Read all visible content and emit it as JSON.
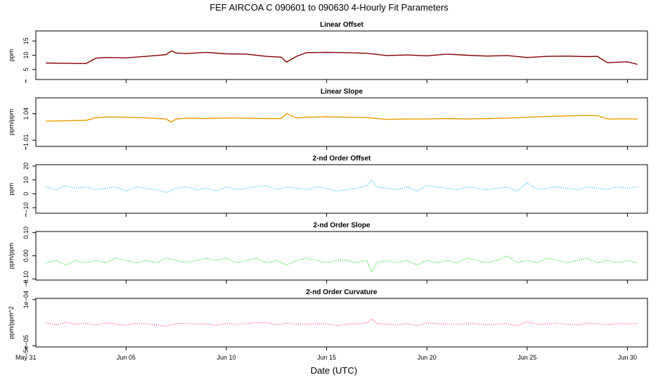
{
  "figure": {
    "title": "FEF   AIRCOA C   090601 to 090630   4-Hourly Fit Parameters",
    "xlabel": "Date (UTC)"
  },
  "x_axis": {
    "type": "date",
    "range": [
      "2009-05-31T12:00",
      "2009-07-01T00:00"
    ],
    "ticks": [
      {
        "date": "2009-05-31",
        "label": "May 31"
      },
      {
        "date": "2009-06-05",
        "label": "Jun 05"
      },
      {
        "date": "2009-06-10",
        "label": "Jun 10"
      },
      {
        "date": "2009-06-15",
        "label": "Jun 15"
      },
      {
        "date": "2009-06-20",
        "label": "Jun 20"
      },
      {
        "date": "2009-06-25",
        "label": "Jun 25"
      },
      {
        "date": "2009-06-30",
        "label": "Jun 30"
      }
    ]
  },
  "chart_data": [
    {
      "type": "line",
      "title": "Linear Offset",
      "ylabel": "ppm",
      "ylim": [
        1.5,
        18.5
      ],
      "yticks": [
        {
          "v": 5,
          "label": "5"
        },
        {
          "v": 10,
          "label": "10"
        },
        {
          "v": 15,
          "label": "15"
        }
      ],
      "color": "#8b0000",
      "style": "solid",
      "x": [
        "2009-06-01",
        "2009-06-02",
        "2009-06-03",
        "2009-06-03T12:00",
        "2009-06-04",
        "2009-06-05",
        "2009-06-06",
        "2009-06-07",
        "2009-06-07T06:00",
        "2009-06-07T12:00",
        "2009-06-08",
        "2009-06-09",
        "2009-06-10",
        "2009-06-11",
        "2009-06-12",
        "2009-06-12T18:00",
        "2009-06-13",
        "2009-06-13T12:00",
        "2009-06-14",
        "2009-06-15",
        "2009-06-16",
        "2009-06-17",
        "2009-06-18",
        "2009-06-19",
        "2009-06-20",
        "2009-06-21",
        "2009-06-22",
        "2009-06-23",
        "2009-06-24",
        "2009-06-25",
        "2009-06-26",
        "2009-06-27",
        "2009-06-28",
        "2009-06-28T12:00",
        "2009-06-29",
        "2009-06-30",
        "2009-06-30T12:00"
      ],
      "y": [
        7.3,
        7.2,
        7.1,
        9.0,
        9.2,
        9.1,
        9.6,
        10.2,
        11.5,
        10.8,
        10.6,
        11.0,
        10.5,
        10.4,
        9.6,
        9.3,
        7.6,
        9.6,
        10.9,
        11.0,
        10.9,
        10.7,
        9.9,
        10.1,
        9.8,
        10.4,
        10.0,
        9.7,
        9.9,
        9.2,
        9.6,
        9.7,
        9.5,
        9.6,
        7.4,
        7.7,
        6.8
      ]
    },
    {
      "type": "line",
      "title": "Linear Slope",
      "ylabel": "ppm/ppm",
      "ylim": [
        1.003,
        1.058
      ],
      "yticks": [
        {
          "v": 1.01,
          "label": "1.01"
        },
        {
          "v": 1.04,
          "label": "1.04"
        }
      ],
      "color": "#ffa500",
      "style": "solid",
      "x": [
        "2009-06-01",
        "2009-06-02",
        "2009-06-03",
        "2009-06-03T12:00",
        "2009-06-04",
        "2009-06-05",
        "2009-06-06",
        "2009-06-07",
        "2009-06-07T06:00",
        "2009-06-07T12:00",
        "2009-06-08",
        "2009-06-09",
        "2009-06-10",
        "2009-06-11",
        "2009-06-12",
        "2009-06-12T18:00",
        "2009-06-13",
        "2009-06-13T12:00",
        "2009-06-14",
        "2009-06-15",
        "2009-06-16",
        "2009-06-17",
        "2009-06-18",
        "2009-06-19",
        "2009-06-20",
        "2009-06-21",
        "2009-06-22",
        "2009-06-23",
        "2009-06-24",
        "2009-06-25",
        "2009-06-26",
        "2009-06-27",
        "2009-06-28",
        "2009-06-28T12:00",
        "2009-06-29",
        "2009-06-30",
        "2009-06-30T12:00"
      ],
      "y": [
        1.0315,
        1.032,
        1.0325,
        1.0355,
        1.0363,
        1.036,
        1.0352,
        1.034,
        1.0305,
        1.034,
        1.035,
        1.0345,
        1.0352,
        1.0348,
        1.0345,
        1.0345,
        1.04,
        1.0352,
        1.036,
        1.0365,
        1.036,
        1.0358,
        1.0335,
        1.034,
        1.034,
        1.0345,
        1.034,
        1.0345,
        1.035,
        1.036,
        1.0368,
        1.0375,
        1.038,
        1.0378,
        1.034,
        1.0342,
        1.034
      ]
    },
    {
      "type": "line",
      "title": "2-nd Order Offset",
      "ylabel": "ppm",
      "ylim": [
        -14,
        21
      ],
      "yticks": [
        {
          "v": -10,
          "label": "−10"
        },
        {
          "v": 0,
          "label": "0"
        },
        {
          "v": 10,
          "label": "10"
        },
        {
          "v": 20,
          "label": "20"
        }
      ],
      "color": "#00b3f0",
      "style": "dotted",
      "x": [
        "2009-06-01",
        "2009-06-01T12:00",
        "2009-06-02",
        "2009-06-02T12:00",
        "2009-06-03",
        "2009-06-03T12:00",
        "2009-06-04",
        "2009-06-04T12:00",
        "2009-06-05",
        "2009-06-05T12:00",
        "2009-06-06",
        "2009-06-06T12:00",
        "2009-06-07",
        "2009-06-07T12:00",
        "2009-06-08",
        "2009-06-08T12:00",
        "2009-06-09",
        "2009-06-09T12:00",
        "2009-06-10",
        "2009-06-10T12:00",
        "2009-06-11",
        "2009-06-11T12:00",
        "2009-06-12",
        "2009-06-12T12:00",
        "2009-06-13",
        "2009-06-13T12:00",
        "2009-06-14",
        "2009-06-14T12:00",
        "2009-06-15",
        "2009-06-15T12:00",
        "2009-06-16",
        "2009-06-16T12:00",
        "2009-06-17",
        "2009-06-17T06:00",
        "2009-06-17T12:00",
        "2009-06-18",
        "2009-06-18T12:00",
        "2009-06-19",
        "2009-06-19T12:00",
        "2009-06-20",
        "2009-06-20T12:00",
        "2009-06-21",
        "2009-06-21T12:00",
        "2009-06-22",
        "2009-06-22T12:00",
        "2009-06-23",
        "2009-06-23T12:00",
        "2009-06-24",
        "2009-06-24T12:00",
        "2009-06-25",
        "2009-06-25T12:00",
        "2009-06-26",
        "2009-06-26T12:00",
        "2009-06-27",
        "2009-06-27T12:00",
        "2009-06-28",
        "2009-06-28T12:00",
        "2009-06-29",
        "2009-06-29T12:00",
        "2009-06-30",
        "2009-06-30T12:00"
      ],
      "y": [
        5,
        3,
        6,
        4,
        5,
        3,
        4,
        5,
        2,
        5,
        4,
        3,
        1,
        4,
        5,
        3,
        4,
        2,
        5,
        3,
        4,
        5,
        6,
        3,
        5,
        4,
        3,
        5,
        4,
        2,
        3,
        4,
        6,
        10,
        5,
        4,
        3,
        5,
        2,
        6,
        5,
        4,
        3,
        5,
        4,
        3,
        4,
        5,
        2,
        8,
        3,
        4,
        5,
        4,
        3,
        5,
        4,
        3,
        5,
        4,
        5
      ]
    },
    {
      "type": "line",
      "title": "2-nd Order Slope",
      "ylabel": "ppm/ppm",
      "ylim": [
        -0.105,
        0.105
      ],
      "yticks": [
        {
          "v": -0.1,
          "label": "−0.10"
        },
        {
          "v": 0,
          "label": "0.00"
        },
        {
          "v": 0.1,
          "label": "0.10"
        }
      ],
      "color": "#00d000",
      "style": "dotted",
      "x": [
        "2009-06-01",
        "2009-06-01T12:00",
        "2009-06-02",
        "2009-06-02T12:00",
        "2009-06-03",
        "2009-06-03T12:00",
        "2009-06-04",
        "2009-06-04T12:00",
        "2009-06-05",
        "2009-06-05T12:00",
        "2009-06-06",
        "2009-06-06T12:00",
        "2009-06-07",
        "2009-06-07T12:00",
        "2009-06-08",
        "2009-06-08T12:00",
        "2009-06-09",
        "2009-06-09T12:00",
        "2009-06-10",
        "2009-06-10T12:00",
        "2009-06-11",
        "2009-06-11T12:00",
        "2009-06-12",
        "2009-06-12T12:00",
        "2009-06-13",
        "2009-06-13T12:00",
        "2009-06-14",
        "2009-06-14T12:00",
        "2009-06-15",
        "2009-06-15T12:00",
        "2009-06-16",
        "2009-06-16T12:00",
        "2009-06-17",
        "2009-06-17T06:00",
        "2009-06-17T12:00",
        "2009-06-18",
        "2009-06-18T12:00",
        "2009-06-19",
        "2009-06-19T12:00",
        "2009-06-20",
        "2009-06-20T12:00",
        "2009-06-21",
        "2009-06-21T12:00",
        "2009-06-22",
        "2009-06-22T12:00",
        "2009-06-23",
        "2009-06-23T12:00",
        "2009-06-24",
        "2009-06-24T12:00",
        "2009-06-25",
        "2009-06-25T12:00",
        "2009-06-26",
        "2009-06-26T12:00",
        "2009-06-27",
        "2009-06-27T12:00",
        "2009-06-28",
        "2009-06-28T12:00",
        "2009-06-29",
        "2009-06-29T12:00",
        "2009-06-30",
        "2009-06-30T12:00"
      ],
      "y": [
        -0.03,
        -0.02,
        -0.04,
        -0.02,
        -0.03,
        -0.02,
        -0.03,
        -0.01,
        -0.02,
        -0.03,
        -0.02,
        -0.03,
        -0.01,
        -0.02,
        -0.03,
        -0.02,
        -0.01,
        -0.02,
        -0.01,
        -0.03,
        -0.02,
        -0.01,
        -0.03,
        -0.02,
        -0.04,
        -0.02,
        -0.01,
        -0.02,
        -0.03,
        -0.02,
        -0.02,
        -0.03,
        -0.02,
        -0.07,
        -0.03,
        -0.02,
        -0.03,
        -0.02,
        -0.04,
        -0.02,
        -0.03,
        -0.02,
        -0.03,
        -0.01,
        -0.02,
        -0.03,
        -0.02,
        0.0,
        -0.03,
        -0.02,
        -0.03,
        -0.01,
        -0.02,
        -0.03,
        -0.02,
        -0.01,
        -0.03,
        -0.02,
        -0.03,
        -0.02,
        -0.03
      ]
    },
    {
      "type": "line",
      "title": "2-nd Order Curvature",
      "ylabel": "ppm/ppm^2",
      "ylim": [
        -5.4e-05,
        0.000104
      ],
      "yticks": [
        {
          "v": -5e-05,
          "label": "−5e−05"
        },
        {
          "v": 0.0001,
          "label": "1e−04"
        }
      ],
      "color": "#ff3070",
      "style": "dotted",
      "x": [
        "2009-06-01",
        "2009-06-01T12:00",
        "2009-06-02",
        "2009-06-02T12:00",
        "2009-06-03",
        "2009-06-03T12:00",
        "2009-06-04",
        "2009-06-04T12:00",
        "2009-06-05",
        "2009-06-05T12:00",
        "2009-06-06",
        "2009-06-06T12:00",
        "2009-06-07",
        "2009-06-07T12:00",
        "2009-06-08",
        "2009-06-08T12:00",
        "2009-06-09",
        "2009-06-09T12:00",
        "2009-06-10",
        "2009-06-10T12:00",
        "2009-06-11",
        "2009-06-11T12:00",
        "2009-06-12",
        "2009-06-12T12:00",
        "2009-06-13",
        "2009-06-13T12:00",
        "2009-06-14",
        "2009-06-14T12:00",
        "2009-06-15",
        "2009-06-15T12:00",
        "2009-06-16",
        "2009-06-16T12:00",
        "2009-06-17",
        "2009-06-17T06:00",
        "2009-06-17T12:00",
        "2009-06-18",
        "2009-06-18T12:00",
        "2009-06-19",
        "2009-06-19T12:00",
        "2009-06-20",
        "2009-06-20T12:00",
        "2009-06-21",
        "2009-06-21T12:00",
        "2009-06-22",
        "2009-06-22T12:00",
        "2009-06-23",
        "2009-06-23T12:00",
        "2009-06-24",
        "2009-06-24T12:00",
        "2009-06-25",
        "2009-06-25T12:00",
        "2009-06-26",
        "2009-06-26T12:00",
        "2009-06-27",
        "2009-06-27T12:00",
        "2009-06-28",
        "2009-06-28T12:00",
        "2009-06-29",
        "2009-06-29T12:00",
        "2009-06-30",
        "2009-06-30T12:00"
      ],
      "y": [
        2.5e-05,
        1.8e-05,
        2.6e-05,
        2e-05,
        2.3e-05,
        1.7e-05,
        2.4e-05,
        2e-05,
        1.6e-05,
        2.3e-05,
        2.1e-05,
        1.8e-05,
        1.3e-05,
        2.2e-05,
        2.3e-05,
        2e-05,
        2.1e-05,
        1.6e-05,
        2.3e-05,
        1.9e-05,
        2.2e-05,
        2.4e-05,
        2.5e-05,
        1.8e-05,
        2.3e-05,
        2e-05,
        1.9e-05,
        2.2e-05,
        2.1e-05,
        1.6e-05,
        2e-05,
        2.2e-05,
        2.3e-05,
        3.8e-05,
        2.2e-05,
        2e-05,
        1.8e-05,
        2.2e-05,
        1.5e-05,
        2.4e-05,
        2.2e-05,
        2e-05,
        1.9e-05,
        2.3e-05,
        2.1e-05,
        1.8e-05,
        2e-05,
        2.2e-05,
        1.5e-05,
        2.8e-05,
        1.9e-05,
        2.1e-05,
        2.3e-05,
        2e-05,
        1.8e-05,
        2.3e-05,
        2.1e-05,
        1.8e-05,
        2.2e-05,
        2.1e-05,
        2.2e-05
      ]
    }
  ]
}
